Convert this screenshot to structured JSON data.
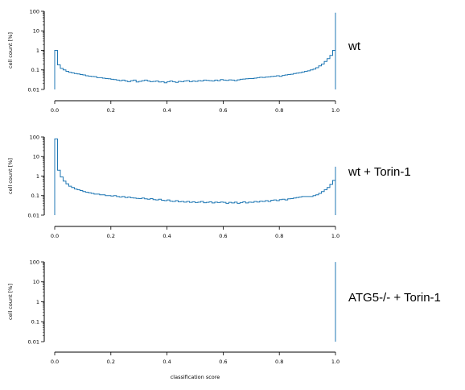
{
  "chart_data": [
    {
      "type": "histogram",
      "title": "wt",
      "xlabel": "",
      "ylabel": "cell count [%]",
      "yscale": "log",
      "ylim": [
        0.01,
        100
      ],
      "xlim": [
        0,
        1
      ],
      "x_ticks": [
        "0.0",
        "0.2",
        "0.4",
        "0.6",
        "0.8",
        "1.0"
      ],
      "y_ticks": [
        "100",
        "10",
        "1",
        "0.1",
        "0.01"
      ],
      "grid": false,
      "color": "#1f77b4",
      "bin_width": 0.01,
      "values": [
        1.0,
        0.18,
        0.12,
        0.1,
        0.085,
        0.075,
        0.07,
        0.065,
        0.062,
        0.058,
        0.055,
        0.05,
        0.048,
        0.046,
        0.045,
        0.04,
        0.04,
        0.038,
        0.036,
        0.035,
        0.033,
        0.032,
        0.03,
        0.028,
        0.03,
        0.027,
        0.025,
        0.028,
        0.03,
        0.024,
        0.026,
        0.028,
        0.03,
        0.027,
        0.025,
        0.026,
        0.027,
        0.024,
        0.025,
        0.022,
        0.025,
        0.027,
        0.025,
        0.023,
        0.026,
        0.025,
        0.027,
        0.028,
        0.025,
        0.027,
        0.026,
        0.028,
        0.027,
        0.03,
        0.029,
        0.028,
        0.027,
        0.03,
        0.028,
        0.032,
        0.03,
        0.029,
        0.031,
        0.03,
        0.028,
        0.031,
        0.033,
        0.034,
        0.035,
        0.036,
        0.036,
        0.038,
        0.04,
        0.042,
        0.041,
        0.043,
        0.044,
        0.046,
        0.048,
        0.05,
        0.047,
        0.052,
        0.055,
        0.058,
        0.06,
        0.065,
        0.068,
        0.072,
        0.078,
        0.085,
        0.09,
        0.1,
        0.11,
        0.13,
        0.16,
        0.2,
        0.27,
        0.38,
        0.55,
        1.0,
        85
      ]
    },
    {
      "type": "histogram",
      "title": "wt + Torin-1",
      "xlabel": "",
      "ylabel": "cell count [%]",
      "yscale": "log",
      "ylim": [
        0.01,
        100
      ],
      "xlim": [
        0,
        1
      ],
      "x_ticks": [
        "0.0",
        "0.2",
        "0.4",
        "0.6",
        "0.8",
        "1.0"
      ],
      "y_ticks": [
        "100",
        "10",
        "1",
        "0.1",
        "0.01"
      ],
      "grid": false,
      "color": "#1f77b4",
      "bin_width": 0.01,
      "values": [
        80,
        2.0,
        0.9,
        0.55,
        0.4,
        0.3,
        0.26,
        0.22,
        0.2,
        0.18,
        0.16,
        0.15,
        0.14,
        0.13,
        0.12,
        0.12,
        0.11,
        0.11,
        0.1,
        0.1,
        0.095,
        0.1,
        0.09,
        0.085,
        0.09,
        0.08,
        0.085,
        0.078,
        0.075,
        0.072,
        0.07,
        0.075,
        0.068,
        0.065,
        0.07,
        0.062,
        0.06,
        0.065,
        0.058,
        0.055,
        0.06,
        0.052,
        0.05,
        0.055,
        0.048,
        0.05,
        0.046,
        0.05,
        0.045,
        0.048,
        0.044,
        0.046,
        0.05,
        0.043,
        0.045,
        0.048,
        0.042,
        0.046,
        0.044,
        0.047,
        0.045,
        0.04,
        0.045,
        0.042,
        0.046,
        0.04,
        0.044,
        0.048,
        0.042,
        0.046,
        0.045,
        0.05,
        0.047,
        0.052,
        0.05,
        0.055,
        0.05,
        0.058,
        0.06,
        0.055,
        0.062,
        0.065,
        0.06,
        0.068,
        0.07,
        0.075,
        0.08,
        0.085,
        0.09,
        0.09,
        0.09,
        0.09,
        0.1,
        0.11,
        0.13,
        0.16,
        0.2,
        0.26,
        0.38,
        0.6,
        3.0
      ]
    },
    {
      "type": "histogram",
      "title": "ATG5-/- + Torin-1",
      "xlabel": "classification score",
      "ylabel": "cell count [%]",
      "yscale": "log",
      "ylim": [
        0.01,
        100
      ],
      "xlim": [
        0,
        1
      ],
      "x_ticks": [
        "0.0",
        "0.2",
        "0.4",
        "0.6",
        "0.8",
        "1.0"
      ],
      "y_ticks": [
        "100",
        "10",
        "1",
        "0.1",
        "0.01"
      ],
      "grid": false,
      "color": "#1f77b4",
      "bin_width": 0.01,
      "values": [
        0,
        0,
        0,
        0,
        0,
        0,
        0,
        0,
        0,
        0,
        0,
        0,
        0,
        0,
        0,
        0,
        0,
        0,
        0,
        0,
        0,
        0,
        0,
        0,
        0,
        0,
        0,
        0,
        0,
        0,
        0,
        0,
        0,
        0,
        0,
        0,
        0,
        0,
        0,
        0,
        0,
        0,
        0,
        0,
        0,
        0,
        0,
        0,
        0,
        0,
        0,
        0,
        0,
        0,
        0,
        0,
        0,
        0,
        0,
        0,
        0,
        0,
        0,
        0,
        0,
        0,
        0,
        0,
        0,
        0,
        0,
        0,
        0,
        0,
        0,
        0,
        0,
        0,
        0,
        0,
        0,
        0,
        0,
        0,
        0,
        0,
        0,
        0,
        0,
        0,
        0,
        0,
        0,
        0,
        0,
        0,
        0,
        0,
        0,
        0,
        99
      ]
    }
  ]
}
